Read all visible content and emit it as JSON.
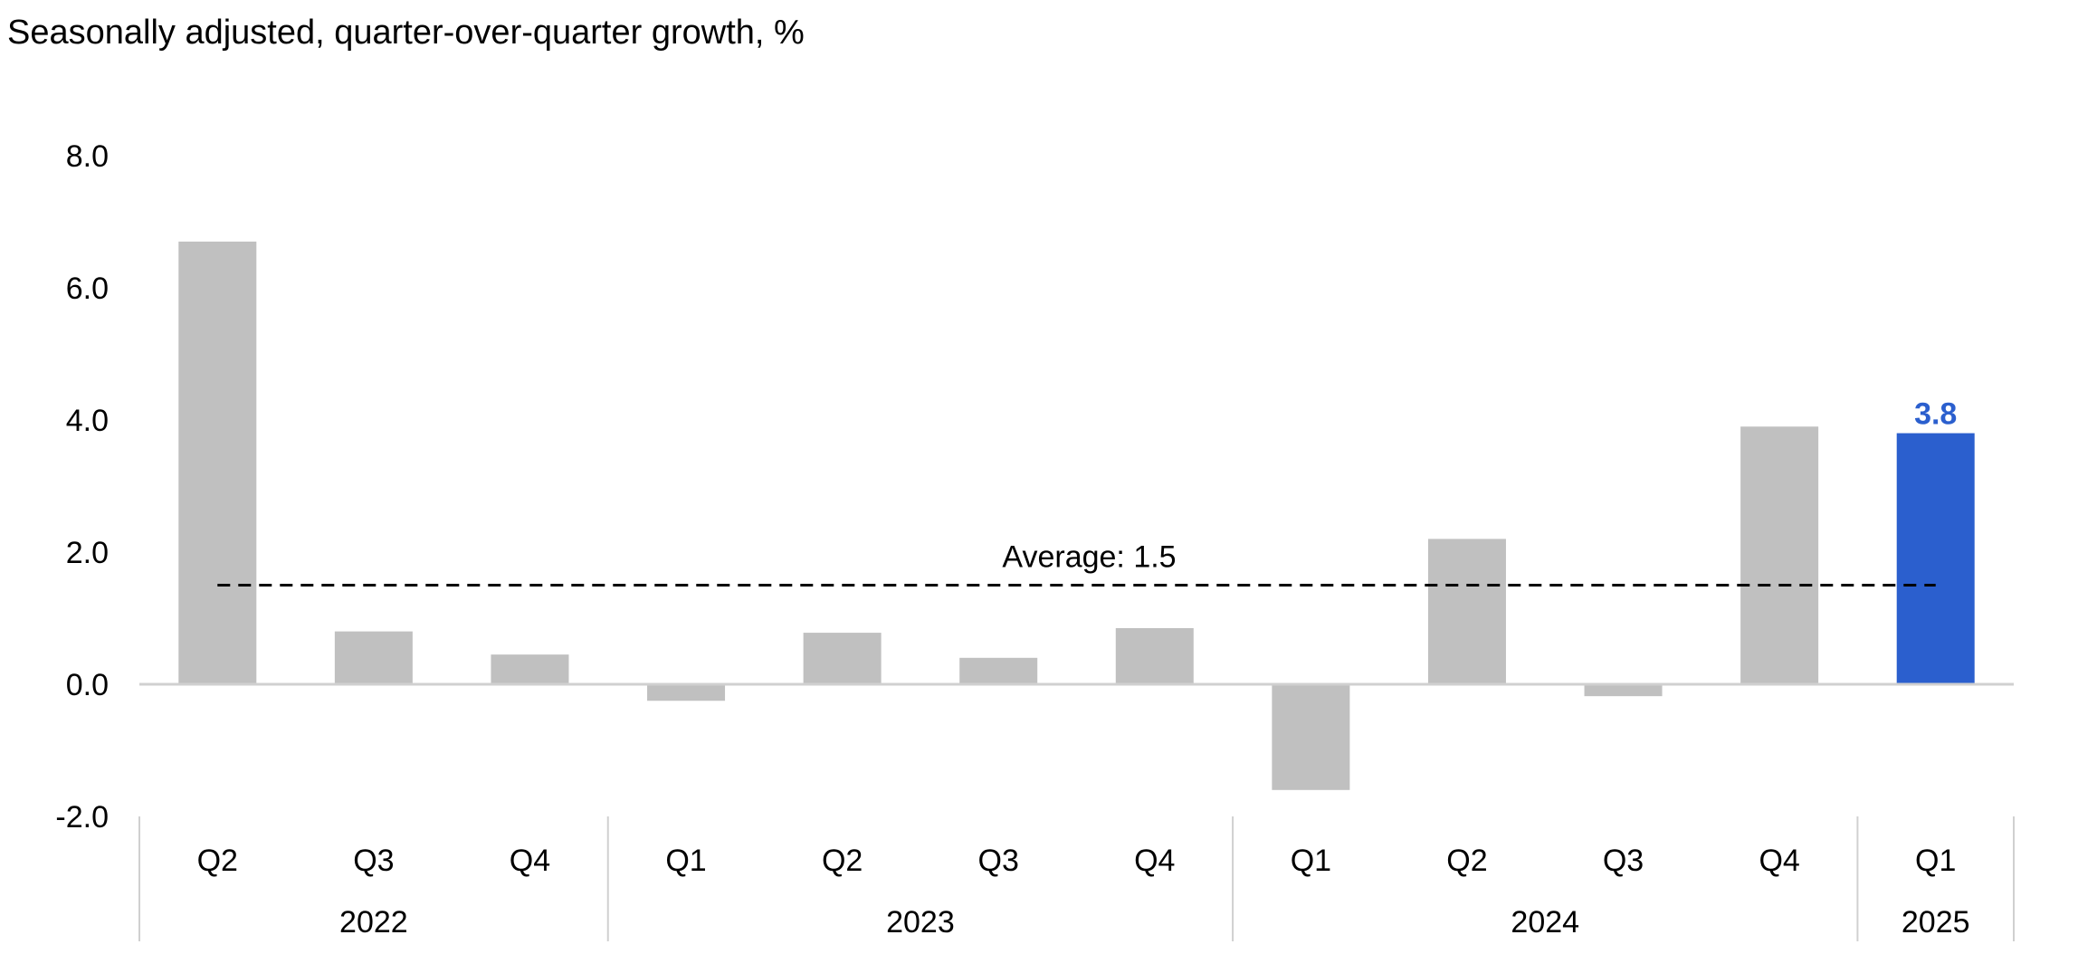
{
  "chart_data": {
    "type": "bar",
    "title": "Seasonally adjusted, quarter-over-quarter growth, %",
    "xlabel": "",
    "ylabel": "",
    "ylim": [
      -2.0,
      8.0
    ],
    "yticks": [
      8.0,
      6.0,
      4.0,
      2.0,
      0.0,
      -2.0
    ],
    "ytick_labels": [
      "8.0",
      "6.0",
      "4.0",
      "2.0",
      "0.0",
      "-2.0"
    ],
    "categories": [
      "Q2",
      "Q3",
      "Q4",
      "Q1",
      "Q2",
      "Q3",
      "Q4",
      "Q1",
      "Q2",
      "Q3",
      "Q4",
      "Q1"
    ],
    "years": [
      {
        "label": "2022",
        "count": 3
      },
      {
        "label": "2023",
        "count": 4
      },
      {
        "label": "2024",
        "count": 4
      },
      {
        "label": "2025",
        "count": 1
      }
    ],
    "values": [
      6.7,
      0.8,
      0.45,
      -0.25,
      0.78,
      0.4,
      0.85,
      -1.6,
      2.2,
      -0.18,
      3.9,
      3.8
    ],
    "highlight_index": 11,
    "highlight_label": "3.8",
    "average": 1.5,
    "average_label": "Average:  1.5",
    "colors": {
      "bar": "#c0c0c0",
      "highlight": "#2b5fce",
      "axis": "#d0d0d0",
      "average_line": "#000000"
    }
  }
}
